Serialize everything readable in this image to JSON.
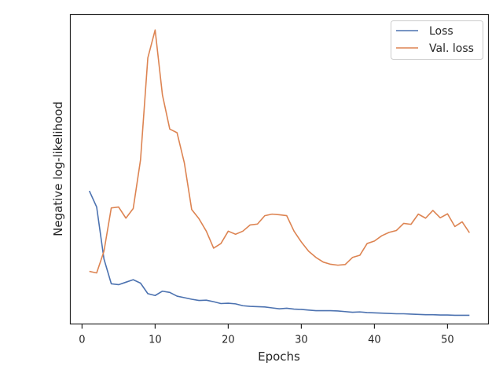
{
  "chart_data": {
    "type": "line",
    "xlabel": "Epochs",
    "ylabel": "Negative log-likelihood",
    "xlim": [
      -1.6,
      55.6
    ],
    "ylim": [
      0,
      1
    ],
    "yscale": "unlabeled",
    "grid": false,
    "legend_position": "top-right",
    "x_ticks": [
      0,
      10,
      20,
      30,
      40,
      50
    ],
    "x_tick_labels": [
      "0",
      "10",
      "20",
      "30",
      "40",
      "50"
    ],
    "x": [
      1,
      2,
      3,
      4,
      5,
      6,
      7,
      8,
      9,
      10,
      11,
      12,
      13,
      14,
      15,
      16,
      17,
      18,
      19,
      20,
      21,
      22,
      23,
      24,
      25,
      26,
      27,
      28,
      29,
      30,
      31,
      32,
      33,
      34,
      35,
      36,
      37,
      38,
      39,
      40,
      41,
      42,
      43,
      44,
      45,
      46,
      47,
      48,
      49,
      50,
      51,
      52,
      53
    ],
    "series": [
      {
        "name": "Loss",
        "color": "#4c72b0",
        "values": [
          0.43,
          0.378,
          0.21,
          0.13,
          0.127,
          0.135,
          0.143,
          0.132,
          0.098,
          0.092,
          0.106,
          0.102,
          0.09,
          0.085,
          0.08,
          0.076,
          0.077,
          0.072,
          0.066,
          0.067,
          0.065,
          0.059,
          0.057,
          0.056,
          0.055,
          0.052,
          0.049,
          0.051,
          0.048,
          0.047,
          0.045,
          0.043,
          0.043,
          0.043,
          0.042,
          0.04,
          0.038,
          0.039,
          0.037,
          0.036,
          0.035,
          0.034,
          0.033,
          0.033,
          0.032,
          0.031,
          0.03,
          0.03,
          0.029,
          0.029,
          0.028,
          0.028,
          0.028
        ]
      },
      {
        "name": "Val. loss",
        "color": "#dd8452",
        "values": [
          0.17,
          0.165,
          0.235,
          0.375,
          0.378,
          0.342,
          0.373,
          0.53,
          0.86,
          0.95,
          0.74,
          0.63,
          0.618,
          0.52,
          0.37,
          0.34,
          0.3,
          0.245,
          0.26,
          0.3,
          0.29,
          0.3,
          0.32,
          0.323,
          0.35,
          0.355,
          0.353,
          0.35,
          0.3,
          0.265,
          0.235,
          0.215,
          0.2,
          0.193,
          0.19,
          0.192,
          0.215,
          0.222,
          0.26,
          0.268,
          0.285,
          0.296,
          0.302,
          0.325,
          0.322,
          0.355,
          0.342,
          0.367,
          0.343,
          0.356,
          0.315,
          0.33,
          0.295
        ]
      }
    ]
  }
}
